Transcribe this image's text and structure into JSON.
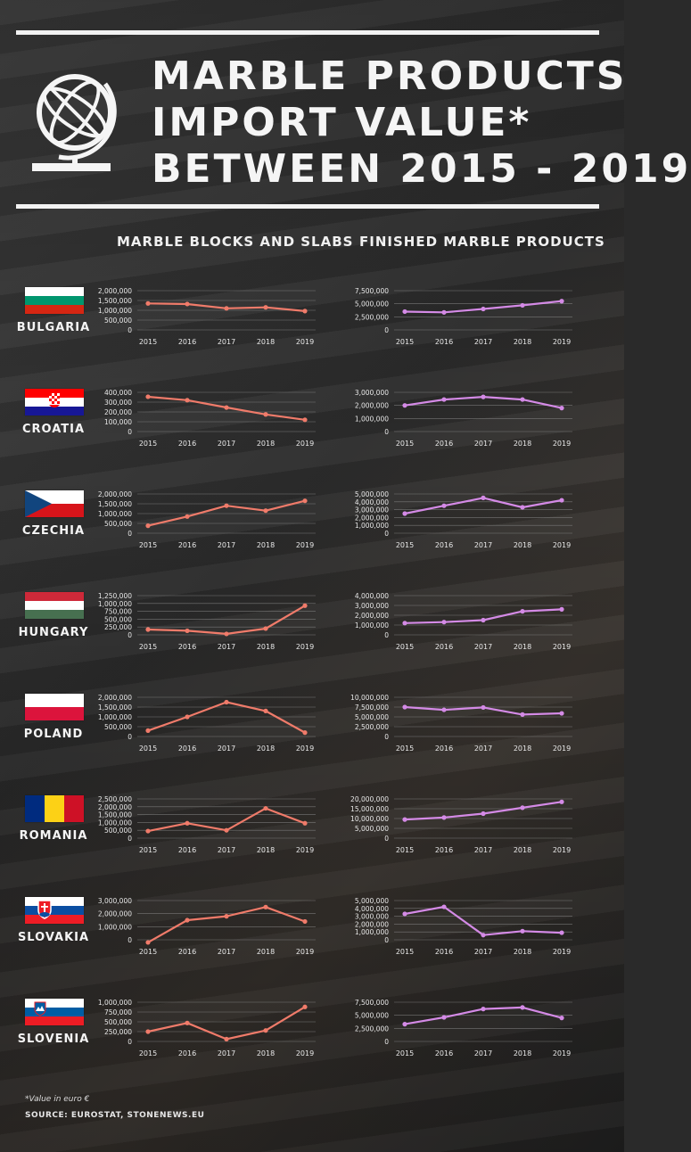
{
  "title": {
    "line1": "MARBLE PRODUCTS",
    "line2": "IMPORT VALUE*",
    "line3": "BETWEEN 2015 - 2019"
  },
  "icon": "globe-icon",
  "columns": {
    "left": "MARBLE BLOCKS AND SLABS",
    "right": "FINISHED MARBLE PRODUCTS"
  },
  "colors": {
    "blocks_line": "#f07b6a",
    "finished_line": "#d48ae6",
    "rule": "#f2f2f2",
    "grid": "#8a8a8a"
  },
  "footer": {
    "note": "*Value in euro €",
    "source": "SOURCE: EUROSTAT, STONENEWS.EU"
  },
  "chart_data": [
    {
      "type": "line",
      "country": "BULGARIA",
      "flag": "bulgaria",
      "panel": "blocks",
      "x": [
        "2015",
        "2016",
        "2017",
        "2018",
        "2019"
      ],
      "values": [
        1350000,
        1320000,
        1100000,
        1150000,
        960000
      ],
      "ylim": [
        0,
        2000000
      ],
      "yticks": [
        "2,000,000",
        "1,500,000",
        "1,000,000",
        "500,000",
        "0"
      ]
    },
    {
      "type": "line",
      "country": "BULGARIA",
      "flag": "bulgaria",
      "panel": "finished",
      "x": [
        "2015",
        "2016",
        "2017",
        "2018",
        "2019"
      ],
      "values": [
        3500000,
        3350000,
        4000000,
        4700000,
        5500000
      ],
      "ylim": [
        0,
        7500000
      ],
      "yticks": [
        "7,500,000",
        "5,000,000",
        "2,500,000",
        "0"
      ]
    },
    {
      "type": "line",
      "country": "CROATIA",
      "flag": "croatia",
      "panel": "blocks",
      "x": [
        "2015",
        "2016",
        "2017",
        "2018",
        "2019"
      ],
      "values": [
        355000,
        320000,
        245000,
        175000,
        120000
      ],
      "ylim": [
        0,
        400000
      ],
      "yticks": [
        "400,000",
        "300,000",
        "200,000",
        "100,000",
        "0"
      ]
    },
    {
      "type": "line",
      "country": "CROATIA",
      "flag": "croatia",
      "panel": "finished",
      "x": [
        "2015",
        "2016",
        "2017",
        "2018",
        "2019"
      ],
      "values": [
        2000000,
        2450000,
        2650000,
        2450000,
        1800000
      ],
      "ylim": [
        0,
        3000000
      ],
      "yticks": [
        "3,000,000",
        "2,000,000",
        "1,000,000",
        "0"
      ]
    },
    {
      "type": "line",
      "country": "CZECHIA",
      "flag": "czechia",
      "panel": "blocks",
      "x": [
        "2015",
        "2016",
        "2017",
        "2018",
        "2019"
      ],
      "values": [
        380000,
        850000,
        1400000,
        1150000,
        1650000
      ],
      "ylim": [
        0,
        2000000
      ],
      "yticks": [
        "2,000,000",
        "1,500,000",
        "1,000,000",
        "500,000",
        "0"
      ]
    },
    {
      "type": "line",
      "country": "CZECHIA",
      "flag": "czechia",
      "panel": "finished",
      "x": [
        "2015",
        "2016",
        "2017",
        "2018",
        "2019"
      ],
      "values": [
        2500000,
        3500000,
        4500000,
        3300000,
        4200000
      ],
      "ylim": [
        0,
        5000000
      ],
      "yticks": [
        "5,000,000",
        "4,000,000",
        "3,000,000",
        "2,000,000",
        "1,000,000",
        "0"
      ]
    },
    {
      "type": "line",
      "country": "HUNGARY",
      "flag": "hungary",
      "panel": "blocks",
      "x": [
        "2015",
        "2016",
        "2017",
        "2018",
        "2019"
      ],
      "values": [
        170000,
        130000,
        30000,
        200000,
        930000
      ],
      "ylim": [
        0,
        1250000
      ],
      "yticks": [
        "1,250,000",
        "1,000,000",
        "750,000",
        "500,000",
        "250,000",
        "0"
      ]
    },
    {
      "type": "line",
      "country": "HUNGARY",
      "flag": "hungary",
      "panel": "finished",
      "x": [
        "2015",
        "2016",
        "2017",
        "2018",
        "2019"
      ],
      "values": [
        1200000,
        1300000,
        1500000,
        2400000,
        2600000
      ],
      "ylim": [
        0,
        4000000
      ],
      "yticks": [
        "4,000,000",
        "3,000,000",
        "2,000,000",
        "1,000,000",
        "0"
      ]
    },
    {
      "type": "line",
      "country": "POLAND",
      "flag": "poland",
      "panel": "blocks",
      "x": [
        "2015",
        "2016",
        "2017",
        "2018",
        "2019"
      ],
      "values": [
        300000,
        1000000,
        1750000,
        1300000,
        200000
      ],
      "ylim": [
        0,
        2000000
      ],
      "yticks": [
        "2,000,000",
        "1,500,000",
        "1,000,000",
        "500,000",
        "0"
      ]
    },
    {
      "type": "line",
      "country": "POLAND",
      "flag": "poland",
      "panel": "finished",
      "x": [
        "2015",
        "2016",
        "2017",
        "2018",
        "2019"
      ],
      "values": [
        7500000,
        6800000,
        7400000,
        5600000,
        5900000
      ],
      "ylim": [
        0,
        10000000
      ],
      "yticks": [
        "10,000,000",
        "7,500,000",
        "5,000,000",
        "2,500,000",
        "0"
      ]
    },
    {
      "type": "line",
      "country": "ROMANIA",
      "flag": "romania",
      "panel": "blocks",
      "x": [
        "2015",
        "2016",
        "2017",
        "2018",
        "2019"
      ],
      "values": [
        450000,
        950000,
        500000,
        1900000,
        950000
      ],
      "ylim": [
        0,
        2500000
      ],
      "yticks": [
        "2,500,000",
        "2,000,000",
        "1,500,000",
        "1,000,000",
        "500,000",
        "0"
      ]
    },
    {
      "type": "line",
      "country": "ROMANIA",
      "flag": "romania",
      "panel": "finished",
      "x": [
        "2015",
        "2016",
        "2017",
        "2018",
        "2019"
      ],
      "values": [
        9500000,
        10500000,
        12500000,
        15500000,
        18500000
      ],
      "ylim": [
        0,
        20000000
      ],
      "yticks": [
        "20,000,000",
        "15,000,000",
        "10,000,000",
        "5,000,000",
        "0"
      ]
    },
    {
      "type": "line",
      "country": "SLOVAKIA",
      "flag": "slovakia",
      "panel": "blocks",
      "x": [
        "2015",
        "2016",
        "2017",
        "2018",
        "2019"
      ],
      "values": [
        -200000,
        1500000,
        1800000,
        2500000,
        1400000
      ],
      "ylim": [
        0,
        3000000
      ],
      "yticks": [
        "3,000,000",
        "2,000,000",
        "1,000,000",
        "0"
      ]
    },
    {
      "type": "line",
      "country": "SLOVAKIA",
      "flag": "slovakia",
      "panel": "finished",
      "x": [
        "2015",
        "2016",
        "2017",
        "2018",
        "2019"
      ],
      "values": [
        3300000,
        4200000,
        600000,
        1100000,
        900000
      ],
      "ylim": [
        0,
        5000000
      ],
      "yticks": [
        "5,000,000",
        "4,000,000",
        "3,000,000",
        "2,000,000",
        "1,000,000",
        "0"
      ]
    },
    {
      "type": "line",
      "country": "SLOVENIA",
      "flag": "slovenia",
      "panel": "blocks",
      "x": [
        "2015",
        "2016",
        "2017",
        "2018",
        "2019"
      ],
      "values": [
        250000,
        470000,
        60000,
        280000,
        880000
      ],
      "ylim": [
        0,
        1000000
      ],
      "yticks": [
        "1,000,000",
        "750,000",
        "500,000",
        "250,000",
        "0"
      ]
    },
    {
      "type": "line",
      "country": "SLOVENIA",
      "flag": "slovenia",
      "panel": "finished",
      "x": [
        "2015",
        "2016",
        "2017",
        "2018",
        "2019"
      ],
      "values": [
        3300000,
        4600000,
        6200000,
        6500000,
        4500000
      ],
      "ylim": [
        0,
        7500000
      ],
      "yticks": [
        "7,500,000",
        "5,000,000",
        "2,500,000",
        "0"
      ]
    }
  ]
}
